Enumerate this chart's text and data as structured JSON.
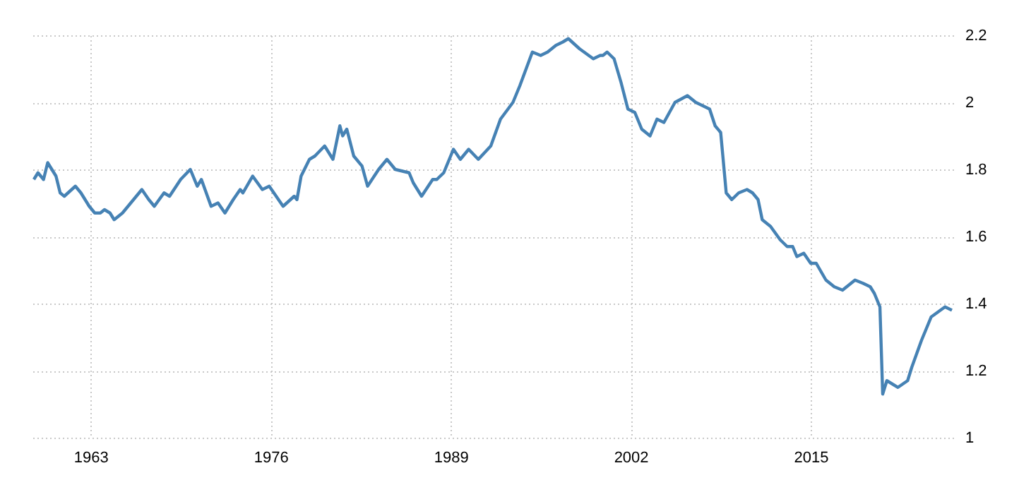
{
  "chart_data": {
    "type": "line",
    "color": "#4682b4",
    "grid": true,
    "x": [
      1958.9,
      1959.2,
      1959.6,
      1959.9,
      1960.5,
      1960.8,
      1961.1,
      1961.9,
      1962.3,
      1962.9,
      1963.3,
      1963.7,
      1964.0,
      1964.4,
      1964.7,
      1965.3,
      1966.1,
      1966.7,
      1967.2,
      1967.6,
      1968.3,
      1968.7,
      1969.5,
      1970.2,
      1970.7,
      1971.0,
      1971.7,
      1972.2,
      1972.7,
      1973.3,
      1973.8,
      1974.0,
      1974.7,
      1975.4,
      1975.9,
      1976.9,
      1977.7,
      1977.9,
      1978.2,
      1978.8,
      1979.2,
      1979.9,
      1980.5,
      1981.0,
      1981.2,
      1981.5,
      1982.0,
      1982.6,
      1983.0,
      1983.8,
      1984.4,
      1985.0,
      1986.0,
      1986.3,
      1986.9,
      1987.7,
      1988.0,
      1988.5,
      1989.2,
      1989.7,
      1990.3,
      1991.0,
      1991.9,
      1992.6,
      1993.5,
      1994.0,
      1994.9,
      1995.5,
      1996.0,
      1996.6,
      1997.1,
      1997.5,
      1998.3,
      1999.3,
      1999.8,
      2000.0,
      2000.3,
      2000.8,
      2001.3,
      2001.8,
      2002.3,
      2002.8,
      2003.4,
      2003.9,
      2004.4,
      2005.2,
      2006.1,
      2006.7,
      2007.2,
      2007.7,
      2008.1,
      2008.5,
      2008.9,
      2009.3,
      2009.8,
      2010.4,
      2010.8,
      2011.2,
      2011.5,
      2012.1,
      2012.8,
      2013.3,
      2013.7,
      2014.0,
      2014.5,
      2015.0,
      2015.4,
      2016.1,
      2016.7,
      2017.3,
      2018.2,
      2018.8,
      2019.3,
      2019.6,
      2020.0,
      2020.2,
      2020.5,
      2021.3,
      2022.0,
      2022.3,
      2023.0,
      2023.7,
      2024.7,
      2025.2
    ],
    "values": [
      1.77,
      1.79,
      1.77,
      1.82,
      1.78,
      1.73,
      1.72,
      1.75,
      1.73,
      1.69,
      1.67,
      1.67,
      1.68,
      1.67,
      1.65,
      1.67,
      1.71,
      1.74,
      1.71,
      1.69,
      1.73,
      1.72,
      1.77,
      1.8,
      1.75,
      1.77,
      1.69,
      1.7,
      1.67,
      1.71,
      1.74,
      1.73,
      1.78,
      1.74,
      1.75,
      1.69,
      1.72,
      1.71,
      1.78,
      1.83,
      1.84,
      1.87,
      1.83,
      1.93,
      1.9,
      1.92,
      1.84,
      1.81,
      1.75,
      1.8,
      1.83,
      1.8,
      1.79,
      1.76,
      1.72,
      1.77,
      1.77,
      1.79,
      1.86,
      1.83,
      1.86,
      1.83,
      1.87,
      1.95,
      2.0,
      2.05,
      2.15,
      2.14,
      2.15,
      2.17,
      2.18,
      2.19,
      2.16,
      2.13,
      2.14,
      2.14,
      2.15,
      2.13,
      2.06,
      1.98,
      1.97,
      1.92,
      1.9,
      1.95,
      1.94,
      2.0,
      2.02,
      2.0,
      1.99,
      1.98,
      1.93,
      1.91,
      1.73,
      1.71,
      1.73,
      1.74,
      1.73,
      1.71,
      1.65,
      1.63,
      1.59,
      1.57,
      1.57,
      1.54,
      1.55,
      1.52,
      1.52,
      1.47,
      1.45,
      1.44,
      1.47,
      1.46,
      1.45,
      1.43,
      1.39,
      1.13,
      1.17,
      1.15,
      1.17,
      1.21,
      1.29,
      1.36,
      1.39,
      1.38
    ],
    "xlim": [
      1958.7,
      2025.3
    ],
    "xticks": [
      1963,
      1976,
      1989,
      2002,
      2015
    ],
    "ylim": [
      1,
      2.2
    ],
    "yticks": [
      1,
      1.2,
      1.4,
      1.6,
      1.8,
      2,
      2.2
    ]
  }
}
